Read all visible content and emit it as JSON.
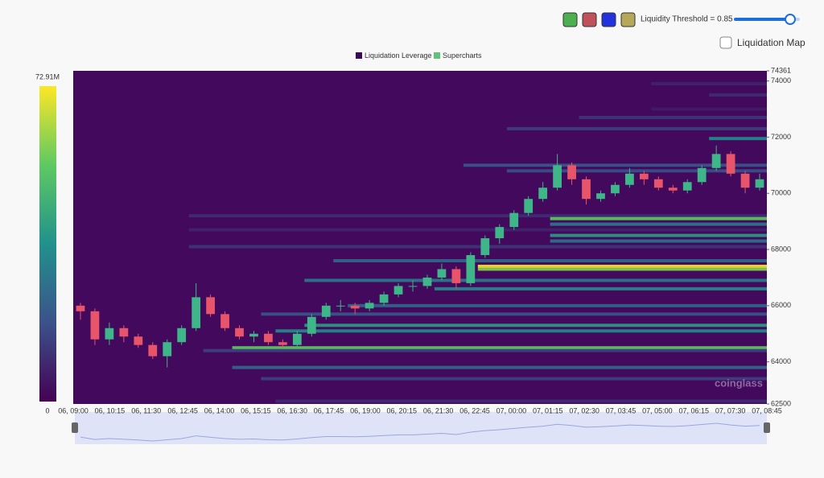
{
  "chart_data": {
    "type": "candlestick-heatmap",
    "legend": [
      "Liquidation Leverage",
      "Supercharts"
    ],
    "legend_colors": [
      "#3b0a57",
      "#5fc47a"
    ],
    "controls": {
      "threshold_label": "Liquidity Threshold = 0.85",
      "map_label": "Liquidation Map"
    },
    "watermark": "coinglass",
    "categories": [
      "06, 09:00",
      "06, 10:15",
      "06, 11:30",
      "06, 12:45",
      "06, 14:00",
      "06, 15:15",
      "06, 16:30",
      "06, 17:45",
      "06, 19:00",
      "06, 20:15",
      "06, 21:30",
      "06, 22:45",
      "07, 00:00",
      "07, 01:15",
      "07, 02:30",
      "07, 03:45",
      "07, 05:00",
      "07, 06:15",
      "07, 07:30",
      "07, 08:45"
    ],
    "ylim": [
      62500,
      74361
    ],
    "yticks": [
      62500,
      64000,
      66000,
      68000,
      70000,
      72000,
      74000,
      74361
    ],
    "open": [
      66000,
      65800,
      64800,
      65200,
      64900,
      64600,
      64200,
      64700,
      65200,
      66300,
      65700,
      65200,
      64900,
      65000,
      64700,
      64600,
      65000,
      65600,
      66000,
      66000,
      65900,
      66100,
      66400,
      66700,
      66700,
      67000,
      67300,
      66800,
      67800,
      68400,
      68800,
      69300,
      69800,
      70200,
      71000,
      70500,
      69800,
      70000,
      70300,
      70700,
      70500,
      70200,
      70100,
      70400,
      70900,
      71400,
      70700,
      70200
    ],
    "high": [
      66100,
      65900,
      65400,
      65300,
      65000,
      64700,
      64800,
      65300,
      66800,
      66400,
      65800,
      65300,
      65100,
      65100,
      64800,
      65100,
      65700,
      66100,
      66200,
      66100,
      66200,
      66500,
      66800,
      66900,
      67100,
      67500,
      67400,
      67900,
      68500,
      68900,
      69400,
      69900,
      70400,
      71400,
      71100,
      70600,
      70100,
      70400,
      70900,
      70800,
      70600,
      70300,
      70500,
      71000,
      71700,
      71500,
      70800,
      70700
    ],
    "low": [
      65500,
      64600,
      64600,
      64700,
      64500,
      64100,
      63800,
      64600,
      65100,
      65600,
      65100,
      64800,
      64700,
      64600,
      64500,
      64500,
      64900,
      65500,
      65800,
      65700,
      65800,
      66000,
      66300,
      66500,
      66600,
      66900,
      66600,
      66700,
      67700,
      68200,
      68700,
      69200,
      69700,
      70100,
      70300,
      69600,
      69700,
      69900,
      70200,
      70300,
      70100,
      70000,
      70000,
      70300,
      70800,
      70600,
      70000,
      70100
    ],
    "close": [
      65800,
      64800,
      65200,
      64900,
      64600,
      64200,
      64700,
      65200,
      66300,
      65700,
      65200,
      64900,
      65000,
      64700,
      64600,
      65000,
      65600,
      66000,
      66000,
      65900,
      66100,
      66400,
      66700,
      66700,
      67000,
      67300,
      66800,
      67800,
      68400,
      68800,
      69300,
      69800,
      70200,
      71000,
      70500,
      69800,
      70000,
      70300,
      70700,
      70500,
      70200,
      70100,
      70400,
      70900,
      71400,
      70700,
      70200,
      70500
    ],
    "up_color": "#3fb58a",
    "down_color": "#e8546a",
    "bands": {
      "price": [
        73900,
        73500,
        73000,
        72700,
        72300,
        71950,
        71000,
        70800,
        69200,
        69100,
        68900,
        68700,
        68500,
        68300,
        68100,
        67600,
        67400,
        67300,
        66900,
        66600,
        66000,
        65700,
        65300,
        65100,
        64500,
        64400,
        63800,
        63400,
        62600
      ],
      "start": [
        40,
        44,
        40,
        35,
        30,
        44,
        27,
        30,
        8,
        33,
        33,
        8,
        33,
        33,
        8,
        18,
        28,
        28,
        16,
        25,
        19,
        13,
        16,
        14,
        11,
        9,
        11,
        13,
        14
      ],
      "value": [
        8,
        10,
        6,
        12,
        14,
        35,
        20,
        18,
        10,
        55,
        30,
        8,
        40,
        28,
        12,
        25,
        72.91,
        60,
        30,
        35,
        25,
        20,
        40,
        35,
        55,
        15,
        25,
        15,
        10
      ]
    },
    "clim": [
      0,
      72.91
    ],
    "colorbar_ticks": [
      0,
      {
        "value": 72.91,
        "label": "72.91M"
      }
    ],
    "background": "#42095c"
  }
}
